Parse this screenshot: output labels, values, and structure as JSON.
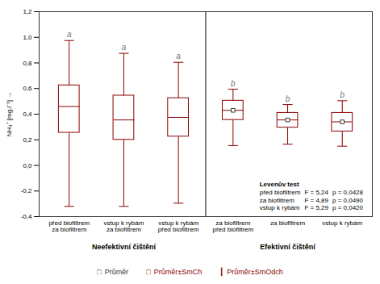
{
  "chart_data": {
    "type": "box",
    "ylabel": "NH₄⁺ [mg.l⁻¹]",
    "categories": [
      "před biofiltrem\nza biofiltrem",
      "vstup k rybám\nza biofiltrem",
      "vstup k rybám\npřed biofiltrem",
      "za biofiltrem\npřed biofiltrem",
      "za biofiltrem",
      "vstup k rybám"
    ],
    "mean": [
      0.46,
      0.355,
      0.375,
      0.43,
      0.355,
      0.34
    ],
    "q1": [
      0.255,
      0.2,
      0.225,
      0.355,
      0.295,
      0.265
    ],
    "q3": [
      0.625,
      0.545,
      0.525,
      0.505,
      0.41,
      0.41
    ],
    "whisker_low": [
      -0.32,
      -0.32,
      -0.295,
      0.155,
      0.165,
      0.15
    ],
    "whisker_high": [
      0.975,
      0.875,
      0.805,
      0.595,
      0.475,
      0.505
    ],
    "letters": [
      "a",
      "a",
      "a",
      "b",
      "b",
      "b"
    ],
    "sections": [
      "Neefektivní čištění",
      "Efektivní čištění"
    ],
    "section": [
      0,
      0,
      0,
      1,
      1,
      1
    ],
    "mean_marker": [
      false,
      false,
      false,
      true,
      true,
      true
    ],
    "color": "#8b0000",
    "grid": false,
    "ylim": [
      -0.4,
      1.2
    ],
    "yticks": [
      {
        "value": -0.4,
        "label": "-0,4"
      },
      {
        "value": -0.2,
        "label": "-0,2"
      },
      {
        "value": 0.0,
        "label": "0,0"
      },
      {
        "value": 0.2,
        "label": "0,2"
      },
      {
        "value": 0.4,
        "label": "0,4"
      },
      {
        "value": 0.6,
        "label": "0,6"
      },
      {
        "value": 0.8,
        "label": "0,8"
      },
      {
        "value": 1.0,
        "label": "1,0"
      },
      {
        "value": 1.2,
        "label": "1,2"
      }
    ],
    "legend_items": [
      {
        "symbol": "□",
        "text": "Průměr",
        "color": "#333333"
      },
      {
        "symbol": "□",
        "text": "Průměr±SmCh",
        "color": "#8b0000"
      },
      {
        "symbol": "┃",
        "text": "Průměr±SmOdch",
        "color": "#8b0000"
      }
    ],
    "levene": {
      "title": "Levenův test",
      "rows": [
        {
          "label": "před biofiltrem",
          "F": "F = 5,24",
          "p": "p = 0,0428"
        },
        {
          "label": "za biofiltrem",
          "F": "F = 4,89",
          "p": "p = 0,0490"
        },
        {
          "label": "vstup k rybám",
          "F": "F = 5,29",
          "p": "p = 0,0420"
        }
      ]
    }
  }
}
